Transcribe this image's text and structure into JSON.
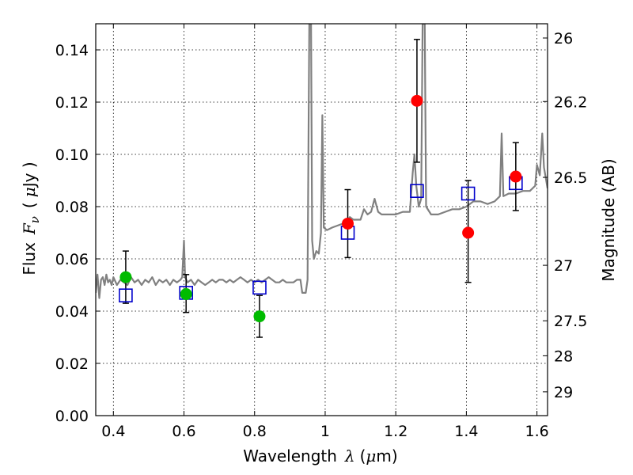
{
  "chart_data": {
    "type": "scatter",
    "xlim": [
      0.35,
      1.63
    ],
    "ylim": [
      0.0,
      0.15
    ],
    "grid": true,
    "xlabel_text": "Wavelength",
    "xlabel_symbol": "λ",
    "xlabel_unit_open": "(",
    "xlabel_unit_mu": "μ",
    "xlabel_unit_rest": "m)",
    "ylabel_text": "Flux",
    "ylabel_symbol": "F",
    "ylabel_sub": "ν",
    "ylabel_unit_open": "(",
    "ylabel_unit_mu": "μ",
    "ylabel_unit_rest": "Jy )",
    "y2label": "Magnitude (AB)",
    "x_ticks": [
      {
        "value": 0.4,
        "label": "0.4"
      },
      {
        "value": 0.6,
        "label": "0.6"
      },
      {
        "value": 0.8,
        "label": "0.8"
      },
      {
        "value": 1.0,
        "label": "1"
      },
      {
        "value": 1.2,
        "label": "1.2"
      },
      {
        "value": 1.4,
        "label": "1.4"
      },
      {
        "value": 1.6,
        "label": "1.6"
      }
    ],
    "y_ticks": [
      {
        "value": 0.0,
        "label": "0.00"
      },
      {
        "value": 0.02,
        "label": "0.02"
      },
      {
        "value": 0.04,
        "label": "0.04"
      },
      {
        "value": 0.06,
        "label": "0.06"
      },
      {
        "value": 0.08,
        "label": "0.08"
      },
      {
        "value": 0.1,
        "label": "0.10"
      },
      {
        "value": 0.12,
        "label": "0.12"
      },
      {
        "value": 0.14,
        "label": "0.14"
      }
    ],
    "mag_ticks": [
      {
        "value": 26,
        "label": "26"
      },
      {
        "value": 26.2,
        "label": "26.2"
      },
      {
        "value": 26.5,
        "label": "26.5"
      },
      {
        "value": 27,
        "label": "27"
      },
      {
        "value": 27.5,
        "label": "27.5"
      },
      {
        "value": 28,
        "label": "28"
      },
      {
        "value": 29,
        "label": "29"
      }
    ],
    "model_spectrum": {
      "color": "#808080",
      "points": [
        [
          0.35,
          0.047
        ],
        [
          0.355,
          0.054
        ],
        [
          0.36,
          0.045
        ],
        [
          0.365,
          0.052
        ],
        [
          0.37,
          0.053
        ],
        [
          0.375,
          0.05
        ],
        [
          0.38,
          0.054
        ],
        [
          0.385,
          0.051
        ],
        [
          0.39,
          0.052
        ],
        [
          0.395,
          0.05
        ],
        [
          0.4,
          0.053
        ],
        [
          0.41,
          0.05
        ],
        [
          0.42,
          0.052
        ],
        [
          0.43,
          0.051
        ],
        [
          0.44,
          0.05
        ],
        [
          0.45,
          0.053
        ],
        [
          0.46,
          0.051
        ],
        [
          0.47,
          0.052
        ],
        [
          0.48,
          0.05
        ],
        [
          0.49,
          0.052
        ],
        [
          0.5,
          0.051
        ],
        [
          0.51,
          0.053
        ],
        [
          0.52,
          0.05
        ],
        [
          0.53,
          0.052
        ],
        [
          0.54,
          0.051
        ],
        [
          0.55,
          0.052
        ],
        [
          0.56,
          0.05
        ],
        [
          0.57,
          0.052
        ],
        [
          0.58,
          0.051
        ],
        [
          0.59,
          0.052
        ],
        [
          0.595,
          0.053
        ],
        [
          0.6,
          0.067
        ],
        [
          0.603,
          0.053
        ],
        [
          0.61,
          0.051
        ],
        [
          0.62,
          0.052
        ],
        [
          0.63,
          0.05
        ],
        [
          0.64,
          0.052
        ],
        [
          0.65,
          0.051
        ],
        [
          0.66,
          0.05
        ],
        [
          0.67,
          0.051
        ],
        [
          0.68,
          0.052
        ],
        [
          0.69,
          0.051
        ],
        [
          0.7,
          0.052
        ],
        [
          0.71,
          0.052
        ],
        [
          0.72,
          0.051
        ],
        [
          0.73,
          0.052
        ],
        [
          0.74,
          0.051
        ],
        [
          0.75,
          0.052
        ],
        [
          0.76,
          0.053
        ],
        [
          0.77,
          0.052
        ],
        [
          0.78,
          0.051
        ],
        [
          0.79,
          0.052
        ],
        [
          0.8,
          0.051
        ],
        [
          0.81,
          0.052
        ],
        [
          0.82,
          0.051
        ],
        [
          0.83,
          0.052
        ],
        [
          0.84,
          0.053
        ],
        [
          0.85,
          0.052
        ],
        [
          0.86,
          0.051
        ],
        [
          0.87,
          0.051
        ],
        [
          0.88,
          0.052
        ],
        [
          0.89,
          0.051
        ],
        [
          0.9,
          0.051
        ],
        [
          0.91,
          0.051
        ],
        [
          0.92,
          0.052
        ],
        [
          0.93,
          0.052
        ],
        [
          0.935,
          0.047
        ],
        [
          0.945,
          0.047
        ],
        [
          0.95,
          0.052
        ],
        [
          0.955,
          0.15
        ],
        [
          0.96,
          0.15
        ],
        [
          0.963,
          0.067
        ],
        [
          0.968,
          0.06
        ],
        [
          0.975,
          0.063
        ],
        [
          0.982,
          0.062
        ],
        [
          0.988,
          0.07
        ],
        [
          0.992,
          0.115
        ],
        [
          0.996,
          0.072
        ],
        [
          1.005,
          0.071
        ],
        [
          1.02,
          0.072
        ],
        [
          1.04,
          0.073
        ],
        [
          1.06,
          0.074
        ],
        [
          1.07,
          0.076
        ],
        [
          1.08,
          0.075
        ],
        [
          1.1,
          0.075
        ],
        [
          1.11,
          0.079
        ],
        [
          1.12,
          0.077
        ],
        [
          1.13,
          0.078
        ],
        [
          1.14,
          0.083
        ],
        [
          1.15,
          0.078
        ],
        [
          1.16,
          0.077
        ],
        [
          1.18,
          0.077
        ],
        [
          1.2,
          0.077
        ],
        [
          1.22,
          0.078
        ],
        [
          1.24,
          0.078
        ],
        [
          1.248,
          0.093
        ],
        [
          1.253,
          0.1
        ],
        [
          1.258,
          0.088
        ],
        [
          1.265,
          0.08
        ],
        [
          1.272,
          0.083
        ],
        [
          1.276,
          0.15
        ],
        [
          1.282,
          0.15
        ],
        [
          1.286,
          0.08
        ],
        [
          1.3,
          0.077
        ],
        [
          1.32,
          0.077
        ],
        [
          1.34,
          0.078
        ],
        [
          1.36,
          0.079
        ],
        [
          1.38,
          0.079
        ],
        [
          1.4,
          0.08
        ],
        [
          1.42,
          0.082
        ],
        [
          1.44,
          0.082
        ],
        [
          1.46,
          0.081
        ],
        [
          1.48,
          0.082
        ],
        [
          1.495,
          0.084
        ],
        [
          1.5,
          0.108
        ],
        [
          1.505,
          0.084
        ],
        [
          1.52,
          0.085
        ],
        [
          1.54,
          0.085
        ],
        [
          1.56,
          0.086
        ],
        [
          1.58,
          0.086
        ],
        [
          1.595,
          0.088
        ],
        [
          1.6,
          0.096
        ],
        [
          1.608,
          0.092
        ],
        [
          1.615,
          0.108
        ],
        [
          1.62,
          0.095
        ],
        [
          1.63,
          0.087
        ]
      ]
    },
    "model_photometry": {
      "marker": "square",
      "color": "#0000cc",
      "points": [
        {
          "x": 0.435,
          "y": 0.046
        },
        {
          "x": 0.606,
          "y": 0.047
        },
        {
          "x": 0.814,
          "y": 0.049
        },
        {
          "x": 1.064,
          "y": 0.07
        },
        {
          "x": 1.26,
          "y": 0.086
        },
        {
          "x": 1.405,
          "y": 0.085
        },
        {
          "x": 1.54,
          "y": 0.089
        }
      ]
    },
    "observed_optical": {
      "marker": "circle",
      "color": "#00bb00",
      "points": [
        {
          "x": 0.435,
          "y": 0.053,
          "err_low": 0.043,
          "err_high": 0.063
        },
        {
          "x": 0.606,
          "y": 0.0465,
          "err_low": 0.0395,
          "err_high": 0.054
        },
        {
          "x": 0.814,
          "y": 0.038,
          "err_low": 0.03,
          "err_high": 0.046
        }
      ]
    },
    "observed_nir": {
      "marker": "circle",
      "color": "#ff0000",
      "points": [
        {
          "x": 1.064,
          "y": 0.0735,
          "err_low": 0.0605,
          "err_high": 0.0865
        },
        {
          "x": 1.26,
          "y": 0.1205,
          "err_low": 0.097,
          "err_high": 0.144
        },
        {
          "x": 1.405,
          "y": 0.07,
          "err_low": 0.051,
          "err_high": 0.09
        },
        {
          "x": 1.54,
          "y": 0.0915,
          "err_low": 0.0785,
          "err_high": 0.1045
        }
      ]
    }
  }
}
